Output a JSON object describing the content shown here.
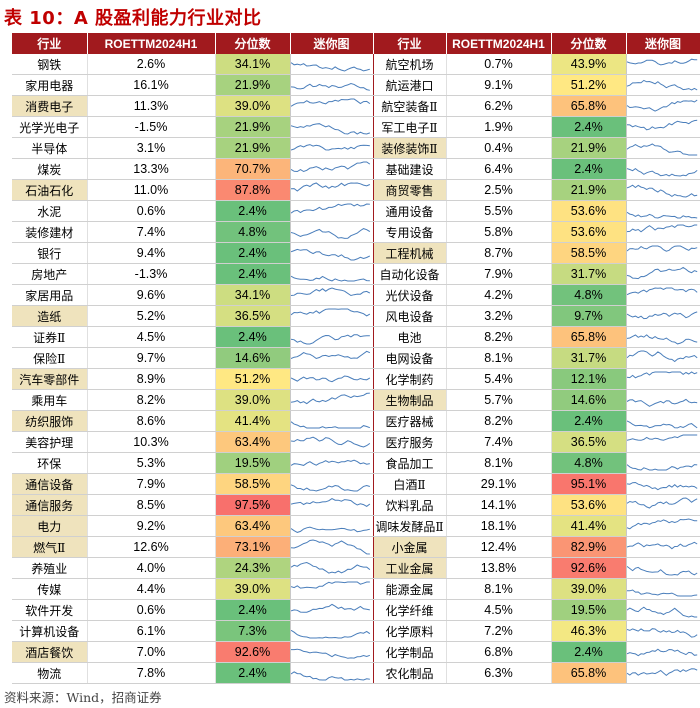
{
  "title": "表 10：A 股盈利能力行业对比",
  "headers": [
    "行业",
    "ROETTM2024H1",
    "分位数",
    "迷你图",
    "行业",
    "ROETTM2024H1",
    "分位数",
    "迷你图"
  ],
  "source": "资料来源：Wind，招商证券",
  "rows": [
    [
      {
        "name": "钢铁",
        "roe": "2.6%",
        "pct": "34.1%",
        "pv": 34.1,
        "hl": false
      },
      {
        "name": "航空机场",
        "roe": "0.7%",
        "pct": "43.9%",
        "pv": 43.9,
        "hl": false
      }
    ],
    [
      {
        "name": "家用电器",
        "roe": "16.1%",
        "pct": "21.9%",
        "pv": 21.9,
        "hl": false
      },
      {
        "name": "航运港口",
        "roe": "9.1%",
        "pct": "51.2%",
        "pv": 51.2,
        "hl": false
      }
    ],
    [
      {
        "name": "消费电子",
        "roe": "11.3%",
        "pct": "39.0%",
        "pv": 39.0,
        "hl": true
      },
      {
        "name": "航空装备Ⅱ",
        "roe": "6.2%",
        "pct": "65.8%",
        "pv": 65.8,
        "hl": false
      }
    ],
    [
      {
        "name": "光学光电子",
        "roe": "-1.5%",
        "pct": "21.9%",
        "pv": 21.9,
        "hl": false
      },
      {
        "name": "军工电子Ⅱ",
        "roe": "1.9%",
        "pct": "2.4%",
        "pv": 2.4,
        "hl": false
      }
    ],
    [
      {
        "name": "半导体",
        "roe": "3.1%",
        "pct": "21.9%",
        "pv": 21.9,
        "hl": false
      },
      {
        "name": "装修装饰Ⅱ",
        "roe": "0.4%",
        "pct": "21.9%",
        "pv": 21.9,
        "hl": true
      }
    ],
    [
      {
        "name": "煤炭",
        "roe": "13.3%",
        "pct": "70.7%",
        "pv": 70.7,
        "hl": false
      },
      {
        "name": "基础建设",
        "roe": "6.4%",
        "pct": "2.4%",
        "pv": 2.4,
        "hl": false
      }
    ],
    [
      {
        "name": "石油石化",
        "roe": "11.0%",
        "pct": "87.8%",
        "pv": 87.8,
        "hl": true
      },
      {
        "name": "商贸零售",
        "roe": "2.5%",
        "pct": "21.9%",
        "pv": 21.9,
        "hl": true
      }
    ],
    [
      {
        "name": "水泥",
        "roe": "0.6%",
        "pct": "2.4%",
        "pv": 2.4,
        "hl": false
      },
      {
        "name": "通用设备",
        "roe": "5.5%",
        "pct": "53.6%",
        "pv": 53.6,
        "hl": false
      }
    ],
    [
      {
        "name": "装修建材",
        "roe": "7.4%",
        "pct": "4.8%",
        "pv": 4.8,
        "hl": false
      },
      {
        "name": "专用设备",
        "roe": "5.8%",
        "pct": "53.6%",
        "pv": 53.6,
        "hl": false
      }
    ],
    [
      {
        "name": "银行",
        "roe": "9.4%",
        "pct": "2.4%",
        "pv": 2.4,
        "hl": false
      },
      {
        "name": "工程机械",
        "roe": "8.7%",
        "pct": "58.5%",
        "pv": 58.5,
        "hl": true
      }
    ],
    [
      {
        "name": "房地产",
        "roe": "-1.3%",
        "pct": "2.4%",
        "pv": 2.4,
        "hl": false
      },
      {
        "name": "自动化设备",
        "roe": "7.9%",
        "pct": "31.7%",
        "pv": 31.7,
        "hl": false
      }
    ],
    [
      {
        "name": "家居用品",
        "roe": "9.6%",
        "pct": "34.1%",
        "pv": 34.1,
        "hl": false
      },
      {
        "name": "光伏设备",
        "roe": "4.2%",
        "pct": "4.8%",
        "pv": 4.8,
        "hl": false
      }
    ],
    [
      {
        "name": "造纸",
        "roe": "5.2%",
        "pct": "36.5%",
        "pv": 36.5,
        "hl": true
      },
      {
        "name": "风电设备",
        "roe": "3.2%",
        "pct": "9.7%",
        "pv": 9.7,
        "hl": false
      }
    ],
    [
      {
        "name": "证券Ⅱ",
        "roe": "4.5%",
        "pct": "2.4%",
        "pv": 2.4,
        "hl": false
      },
      {
        "name": "电池",
        "roe": "8.2%",
        "pct": "65.8%",
        "pv": 65.8,
        "hl": false
      }
    ],
    [
      {
        "name": "保险Ⅱ",
        "roe": "9.7%",
        "pct": "14.6%",
        "pv": 14.6,
        "hl": false
      },
      {
        "name": "电网设备",
        "roe": "8.1%",
        "pct": "31.7%",
        "pv": 31.7,
        "hl": false
      }
    ],
    [
      {
        "name": "汽车零部件",
        "roe": "8.9%",
        "pct": "51.2%",
        "pv": 51.2,
        "hl": true
      },
      {
        "name": "化学制药",
        "roe": "5.4%",
        "pct": "12.1%",
        "pv": 12.1,
        "hl": false
      }
    ],
    [
      {
        "name": "乘用车",
        "roe": "8.2%",
        "pct": "39.0%",
        "pv": 39.0,
        "hl": false
      },
      {
        "name": "生物制品",
        "roe": "5.7%",
        "pct": "14.6%",
        "pv": 14.6,
        "hl": true
      }
    ],
    [
      {
        "name": "纺织服饰",
        "roe": "8.6%",
        "pct": "41.4%",
        "pv": 41.4,
        "hl": true
      },
      {
        "name": "医疗器械",
        "roe": "8.2%",
        "pct": "2.4%",
        "pv": 2.4,
        "hl": false
      }
    ],
    [
      {
        "name": "美容护理",
        "roe": "10.3%",
        "pct": "63.4%",
        "pv": 63.4,
        "hl": false
      },
      {
        "name": "医疗服务",
        "roe": "7.4%",
        "pct": "36.5%",
        "pv": 36.5,
        "hl": false
      }
    ],
    [
      {
        "name": "环保",
        "roe": "5.3%",
        "pct": "19.5%",
        "pv": 19.5,
        "hl": false
      },
      {
        "name": "食品加工",
        "roe": "8.1%",
        "pct": "4.8%",
        "pv": 4.8,
        "hl": false
      }
    ],
    [
      {
        "name": "通信设备",
        "roe": "7.9%",
        "pct": "58.5%",
        "pv": 58.5,
        "hl": true
      },
      {
        "name": "白酒Ⅱ",
        "roe": "29.1%",
        "pct": "95.1%",
        "pv": 95.1,
        "hl": false
      }
    ],
    [
      {
        "name": "通信服务",
        "roe": "8.5%",
        "pct": "97.5%",
        "pv": 97.5,
        "hl": true
      },
      {
        "name": "饮料乳品",
        "roe": "14.1%",
        "pct": "53.6%",
        "pv": 53.6,
        "hl": false
      }
    ],
    [
      {
        "name": "电力",
        "roe": "9.2%",
        "pct": "63.4%",
        "pv": 63.4,
        "hl": true
      },
      {
        "name": "调味发酵品Ⅱ",
        "roe": "18.1%",
        "pct": "41.4%",
        "pv": 41.4,
        "hl": false
      }
    ],
    [
      {
        "name": "燃气Ⅱ",
        "roe": "12.6%",
        "pct": "73.1%",
        "pv": 73.1,
        "hl": true
      },
      {
        "name": "小金属",
        "roe": "12.4%",
        "pct": "82.9%",
        "pv": 82.9,
        "hl": true
      }
    ],
    [
      {
        "name": "养殖业",
        "roe": "4.0%",
        "pct": "24.3%",
        "pv": 24.3,
        "hl": false
      },
      {
        "name": "工业金属",
        "roe": "13.8%",
        "pct": "92.6%",
        "pv": 92.6,
        "hl": true
      }
    ],
    [
      {
        "name": "传媒",
        "roe": "4.4%",
        "pct": "39.0%",
        "pv": 39.0,
        "hl": false
      },
      {
        "name": "能源金属",
        "roe": "8.1%",
        "pct": "39.0%",
        "pv": 39.0,
        "hl": false
      }
    ],
    [
      {
        "name": "软件开发",
        "roe": "0.6%",
        "pct": "2.4%",
        "pv": 2.4,
        "hl": false
      },
      {
        "name": "化学纤维",
        "roe": "4.5%",
        "pct": "19.5%",
        "pv": 19.5,
        "hl": false
      }
    ],
    [
      {
        "name": "计算机设备",
        "roe": "6.1%",
        "pct": "7.3%",
        "pv": 7.3,
        "hl": false
      },
      {
        "name": "化学原料",
        "roe": "7.2%",
        "pct": "46.3%",
        "pv": 46.3,
        "hl": false
      }
    ],
    [
      {
        "name": "酒店餐饮",
        "roe": "7.0%",
        "pct": "92.6%",
        "pv": 92.6,
        "hl": true
      },
      {
        "name": "化学制品",
        "roe": "6.8%",
        "pct": "2.4%",
        "pv": 2.4,
        "hl": false
      }
    ],
    [
      {
        "name": "物流",
        "roe": "7.8%",
        "pct": "2.4%",
        "pv": 2.4,
        "hl": false
      },
      {
        "name": "农化制品",
        "roe": "6.3%",
        "pct": "65.8%",
        "pv": 65.8,
        "hl": false
      }
    ]
  ]
}
